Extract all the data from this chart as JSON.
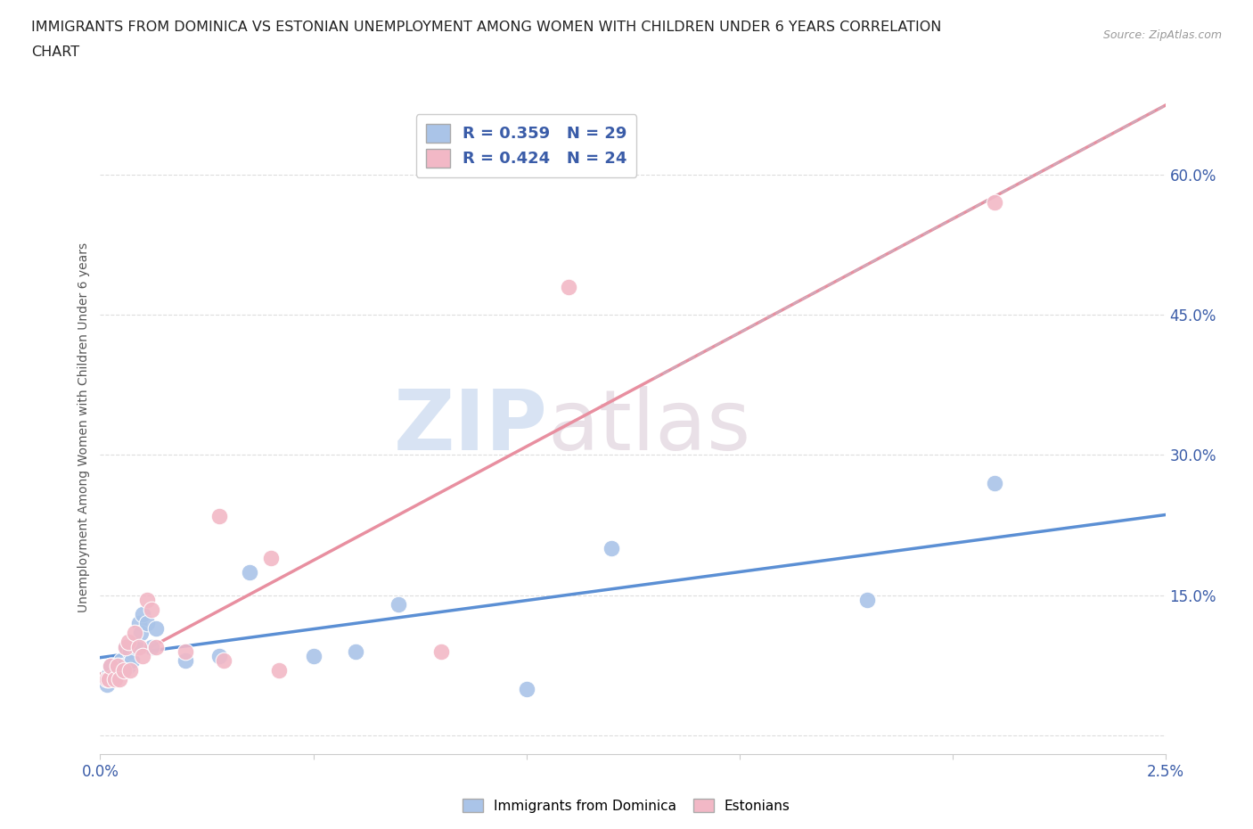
{
  "title_line1": "IMMIGRANTS FROM DOMINICA VS ESTONIAN UNEMPLOYMENT AMONG WOMEN WITH CHILDREN UNDER 6 YEARS CORRELATION",
  "title_line2": "CHART",
  "source": "Source: ZipAtlas.com",
  "ylabel": "Unemployment Among Women with Children Under 6 years",
  "xlim": [
    0.0,
    0.025
  ],
  "ylim": [
    -0.02,
    0.68
  ],
  "xticks": [
    0.0,
    0.005,
    0.01,
    0.015,
    0.02,
    0.025
  ],
  "xtick_labels": [
    "0.0%",
    "",
    "",
    "",
    "",
    "2.5%"
  ],
  "yticks": [
    0.0,
    0.15,
    0.3,
    0.45,
    0.6
  ],
  "ytick_labels": [
    "",
    "15.0%",
    "30.0%",
    "45.0%",
    "60.0%"
  ],
  "background_color": "#ffffff",
  "watermark_zip": "ZIP",
  "watermark_atlas": "atlas",
  "series1_color": "#aac4e8",
  "series2_color": "#f2b8c6",
  "series1_label": "Immigrants from Dominica",
  "series2_label": "Estonians",
  "series1_R": 0.359,
  "series1_N": 29,
  "series2_R": 0.424,
  "series2_N": 24,
  "legend_R_color": "#3a5ca8",
  "series1_x": [
    0.00015,
    0.0002,
    0.00025,
    0.00035,
    0.0004,
    0.0005,
    0.00055,
    0.0006,
    0.00065,
    0.0007,
    0.00075,
    0.0008,
    0.00085,
    0.0009,
    0.00095,
    0.001,
    0.0011,
    0.0012,
    0.0013,
    0.002,
    0.0028,
    0.0035,
    0.005,
    0.006,
    0.007,
    0.01,
    0.012,
    0.018,
    0.021
  ],
  "series1_y": [
    0.055,
    0.065,
    0.075,
    0.065,
    0.075,
    0.08,
    0.075,
    0.095,
    0.075,
    0.09,
    0.08,
    0.1,
    0.095,
    0.12,
    0.11,
    0.13,
    0.12,
    0.095,
    0.115,
    0.08,
    0.085,
    0.175,
    0.085,
    0.09,
    0.14,
    0.05,
    0.2,
    0.145,
    0.27
  ],
  "series2_x": [
    0.00015,
    0.0002,
    0.00025,
    0.00035,
    0.0004,
    0.00045,
    0.00055,
    0.0006,
    0.00065,
    0.0007,
    0.0008,
    0.0009,
    0.001,
    0.0011,
    0.0012,
    0.0013,
    0.002,
    0.0028,
    0.0029,
    0.004,
    0.0042,
    0.008,
    0.011,
    0.021
  ],
  "series2_y": [
    0.06,
    0.06,
    0.075,
    0.06,
    0.075,
    0.06,
    0.07,
    0.095,
    0.1,
    0.07,
    0.11,
    0.095,
    0.085,
    0.145,
    0.135,
    0.095,
    0.09,
    0.235,
    0.08,
    0.19,
    0.07,
    0.09,
    0.48,
    0.57
  ],
  "grid_color": "#dddddd",
  "line1_color": "#5b8fd4",
  "line2_color": "#e88fa0",
  "line1_style": "solid",
  "line2_style": "solid",
  "extraline_color": "#ccaabb",
  "extraline_style": "dashed"
}
